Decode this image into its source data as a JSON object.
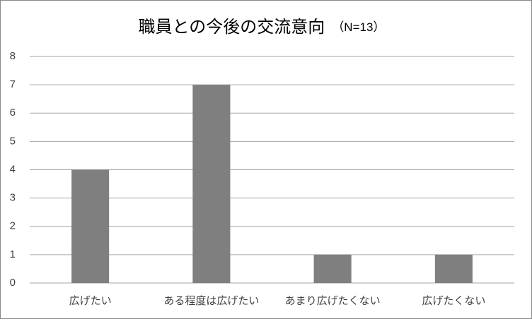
{
  "chart_data": {
    "type": "bar",
    "title": "職員との今後の交流意向",
    "subtitle": "（N=13）",
    "categories": [
      "広げたい",
      "ある程度は広げたい",
      "あまり広げたくない",
      "広げたくない"
    ],
    "values": [
      4,
      7,
      1,
      1
    ],
    "color": "#7f7f7f",
    "ylim": [
      0,
      8
    ],
    "yticks": [
      0,
      1,
      2,
      3,
      4,
      5,
      6,
      7,
      8
    ],
    "grid": true
  }
}
